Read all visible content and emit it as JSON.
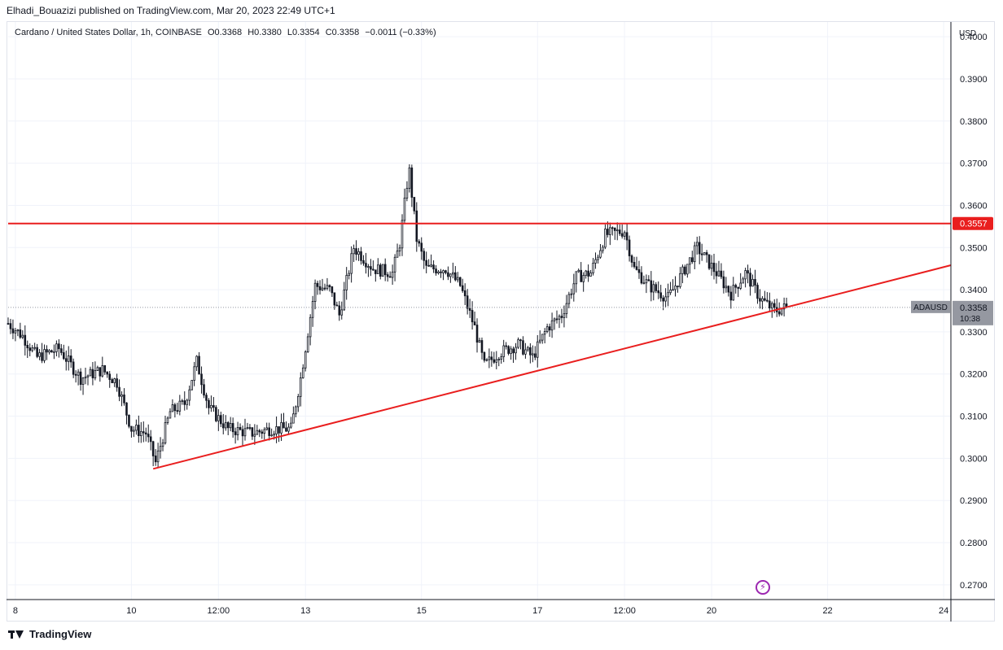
{
  "header": {
    "published_text": "Elhadi_Bouazizi published on TradingView.com, Mar 20, 2023 22:49 UTC+1"
  },
  "legend": {
    "symbol_text": "Cardano / United States Dollar, 1h, COINBASE",
    "open": "O0.3368",
    "high": "H0.3380",
    "low": "L0.3354",
    "close": "C0.3358",
    "change": "−0.0011 (−0.33%)"
  },
  "price_scale": {
    "currency": "USD"
  },
  "footer": {
    "brand": "TradingView"
  },
  "colors": {
    "up": "#131722",
    "down": "#131722",
    "drawing": "#e91e1e",
    "grid": "#f0f3fa",
    "label_bg": "#9598a1"
  },
  "chart_data": {
    "type": "candlestick",
    "title": "Cardano / United States Dollar, 1h, COINBASE",
    "y_range": [
      0.2665,
      0.4035
    ],
    "y_ticks": [
      0.4,
      0.39,
      0.38,
      0.37,
      0.36,
      0.35,
      0.34,
      0.33,
      0.32,
      0.31,
      0.3,
      0.29,
      0.28,
      0.27
    ],
    "x_range_days": [
      "2023-03-07T21:00",
      "2023-03-24T03:00"
    ],
    "x_ticks": [
      {
        "label": "8",
        "t": "2023-03-08T00:00"
      },
      {
        "label": "10",
        "t": "2023-03-10T00:00"
      },
      {
        "label": "12:00",
        "t": "2023-03-11T12:00"
      },
      {
        "label": "13",
        "t": "2023-03-13T00:00"
      },
      {
        "label": "15",
        "t": "2023-03-15T00:00"
      },
      {
        "label": "17",
        "t": "2023-03-17T00:00"
      },
      {
        "label": "12:00",
        "t": "2023-03-18T12:00"
      },
      {
        "label": "20",
        "t": "2023-03-20T00:00"
      },
      {
        "label": "22",
        "t": "2023-03-22T00:00"
      },
      {
        "label": "24",
        "t": "2023-03-24T00:00"
      }
    ],
    "price_anchors": [
      [
        "2023-03-07T21:00",
        0.332
      ],
      [
        "2023-03-08T03:00",
        0.329
      ],
      [
        "2023-03-08T09:00",
        0.324
      ],
      [
        "2023-03-08T18:00",
        0.326
      ],
      [
        "2023-03-09T03:00",
        0.319
      ],
      [
        "2023-03-09T12:00",
        0.321
      ],
      [
        "2023-03-09T18:00",
        0.318
      ],
      [
        "2023-03-10T00:00",
        0.307
      ],
      [
        "2023-03-10T06:00",
        0.306
      ],
      [
        "2023-03-10T10:00",
        0.299
      ],
      [
        "2023-03-10T16:00",
        0.311
      ],
      [
        "2023-03-10T22:00",
        0.313
      ],
      [
        "2023-03-11T03:00",
        0.323
      ],
      [
        "2023-03-11T08:00",
        0.312
      ],
      [
        "2023-03-11T16:00",
        0.307
      ],
      [
        "2023-03-12T02:00",
        0.306
      ],
      [
        "2023-03-12T10:00",
        0.307
      ],
      [
        "2023-03-12T18:00",
        0.307
      ],
      [
        "2023-03-12T22:00",
        0.319
      ],
      [
        "2023-03-13T04:00",
        0.341
      ],
      [
        "2023-03-13T10:00",
        0.34
      ],
      [
        "2023-03-13T14:00",
        0.334
      ],
      [
        "2023-03-13T20:00",
        0.35
      ],
      [
        "2023-03-14T04:00",
        0.345
      ],
      [
        "2023-03-14T12:00",
        0.344
      ],
      [
        "2023-03-14T15:00",
        0.351
      ],
      [
        "2023-03-14T18:00",
        0.365
      ],
      [
        "2023-03-14T19:00",
        0.368
      ],
      [
        "2023-03-14T22:00",
        0.352
      ],
      [
        "2023-03-15T02:00",
        0.345
      ],
      [
        "2023-03-15T10:00",
        0.345
      ],
      [
        "2023-03-15T16:00",
        0.341
      ],
      [
        "2023-03-15T22:00",
        0.331
      ],
      [
        "2023-03-16T02:00",
        0.322
      ],
      [
        "2023-03-16T08:00",
        0.325
      ],
      [
        "2023-03-16T16:00",
        0.327
      ],
      [
        "2023-03-16T22:00",
        0.324
      ],
      [
        "2023-03-17T04:00",
        0.331
      ],
      [
        "2023-03-17T10:00",
        0.334
      ],
      [
        "2023-03-17T16:00",
        0.343
      ],
      [
        "2023-03-17T22:00",
        0.344
      ],
      [
        "2023-03-18T04:00",
        0.353
      ],
      [
        "2023-03-18T12:00",
        0.354
      ],
      [
        "2023-03-18T16:00",
        0.345
      ],
      [
        "2023-03-18T22:00",
        0.341
      ],
      [
        "2023-03-19T06:00",
        0.338
      ],
      [
        "2023-03-19T12:00",
        0.344
      ],
      [
        "2023-03-19T18:00",
        0.35
      ],
      [
        "2023-03-20T02:00",
        0.344
      ],
      [
        "2023-03-20T08:00",
        0.339
      ],
      [
        "2023-03-20T14:00",
        0.344
      ],
      [
        "2023-03-20T20:00",
        0.338
      ],
      [
        "2023-03-21T02:00",
        0.335
      ],
      [
        "2023-03-21T07:00",
        0.3358
      ]
    ],
    "last_price": "0.3358",
    "last_price_value": 0.3358,
    "symbol_label": "ADAUSD",
    "countdown": "10:38",
    "horizontal_line": {
      "value": 0.3557,
      "label": "0.3557"
    },
    "trend_line": {
      "from": [
        "2023-03-10T09:00",
        0.2975
      ],
      "to": [
        "2023-03-24T03:00",
        0.3458
      ]
    }
  }
}
